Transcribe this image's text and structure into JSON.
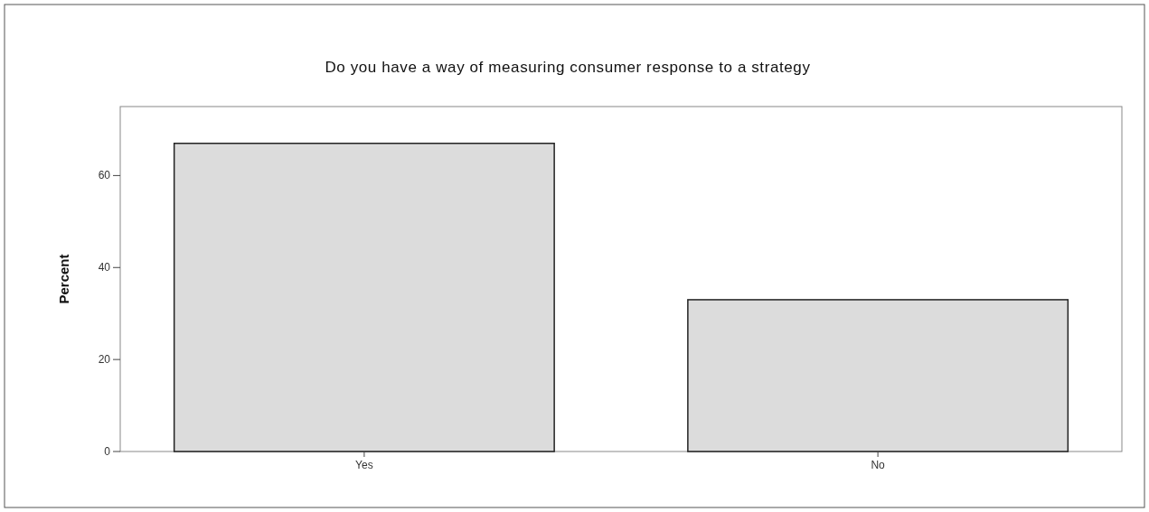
{
  "chart_data": {
    "type": "bar",
    "title": "Do you have a way of measuring consumer response to a strategy",
    "ylabel": "Percent",
    "categories": [
      "Yes",
      "No"
    ],
    "values": [
      67,
      33
    ],
    "color": "#dcdcdc",
    "ylim": [
      0,
      75
    ],
    "yticks": [
      0,
      20,
      40,
      60
    ],
    "grid": false
  }
}
